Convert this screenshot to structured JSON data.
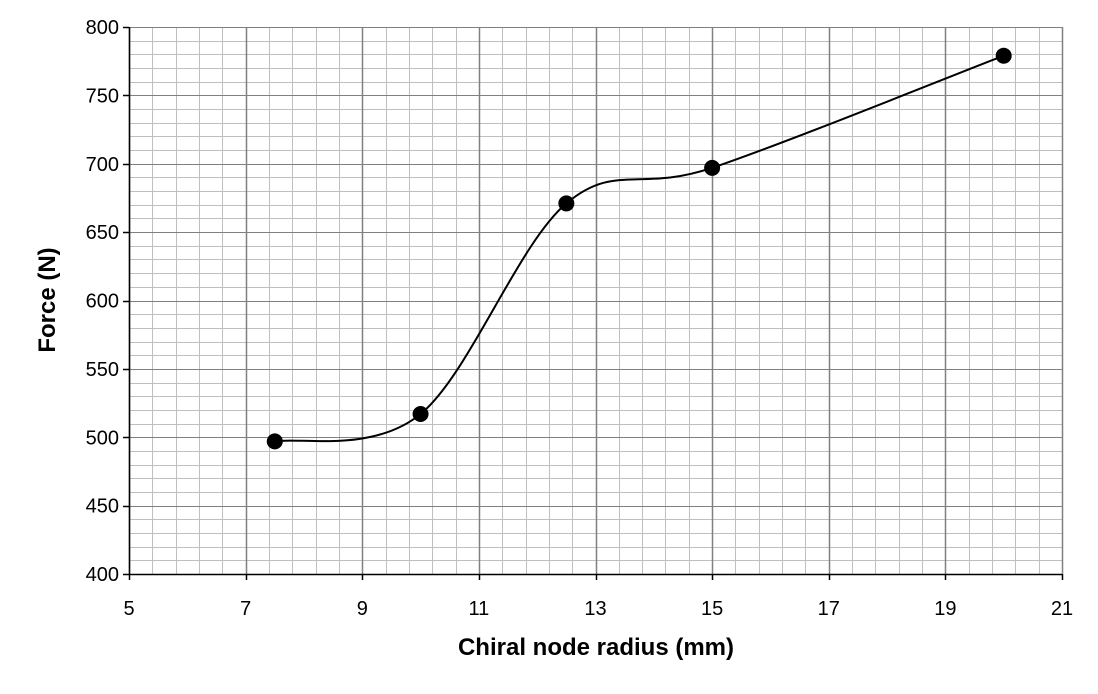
{
  "chart_data": {
    "type": "line",
    "title": "",
    "xlabel": "Chiral node radius (mm)",
    "ylabel": "Force (N)",
    "xlim": [
      5,
      21
    ],
    "ylim": [
      400,
      800
    ],
    "x_major_ticks": [
      5,
      7,
      9,
      11,
      13,
      15,
      17,
      19,
      21
    ],
    "y_major_ticks": [
      400,
      450,
      500,
      550,
      600,
      650,
      700,
      750,
      800
    ],
    "x_tick_labels": [
      "5",
      "7",
      "9",
      "11",
      "13",
      "15",
      "17",
      "19",
      "21"
    ],
    "y_tick_labels": [
      "400",
      "450",
      "500",
      "550",
      "600",
      "650",
      "700",
      "750",
      "800"
    ],
    "x_minor_step": 0.4,
    "y_minor_step": 10,
    "grid": true,
    "legend": "none",
    "series": [
      {
        "x": [
          7.5,
          10,
          12.5,
          15,
          20
        ],
        "y": [
          497,
          517,
          671,
          697,
          779
        ],
        "line_style": "smoothed",
        "marker": "circle",
        "color": "#000000"
      }
    ],
    "colors": {
      "minor_grid": "#bfbfbf",
      "major_grid": "#808080",
      "axis": "#000000"
    }
  }
}
